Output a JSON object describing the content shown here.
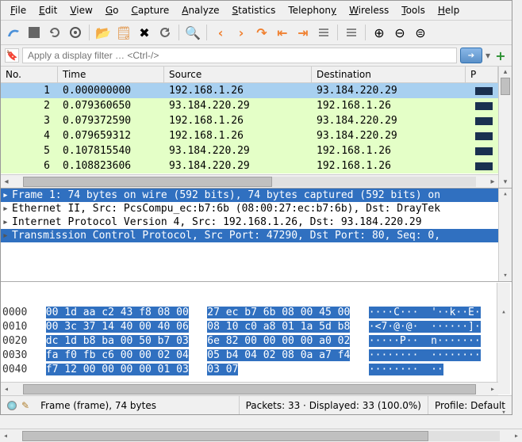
{
  "menu": {
    "file": "File",
    "edit": "Edit",
    "view": "View",
    "go": "Go",
    "capture": "Capture",
    "analyze": "Analyze",
    "statistics": "Statistics",
    "telephony": "Telephony",
    "wireless": "Wireless",
    "tools": "Tools",
    "help": "Help"
  },
  "filter": {
    "placeholder": "Apply a display filter … <Ctrl-/>"
  },
  "packet_list": {
    "columns": {
      "no": "No.",
      "time": "Time",
      "src": "Source",
      "dst": "Destination",
      "proto": "P"
    },
    "rows": [
      {
        "no": "1",
        "time": "0.000000000",
        "src": "192.168.1.26",
        "dst": "93.184.220.29",
        "sel": true
      },
      {
        "no": "2",
        "time": "0.079360650",
        "src": "93.184.220.29",
        "dst": "192.168.1.26"
      },
      {
        "no": "3",
        "time": "0.079372590",
        "src": "192.168.1.26",
        "dst": "93.184.220.29"
      },
      {
        "no": "4",
        "time": "0.079659312",
        "src": "192.168.1.26",
        "dst": "93.184.220.29"
      },
      {
        "no": "5",
        "time": "0.107815540",
        "src": "93.184.220.29",
        "dst": "192.168.1.26"
      },
      {
        "no": "6",
        "time": "0.108823606",
        "src": "93.184.220.29",
        "dst": "192.168.1.26"
      }
    ]
  },
  "details": {
    "l0": "Frame 1: 74 bytes on wire (592 bits), 74 bytes captured (592 bits) on",
    "l1": "Ethernet II, Src: PcsCompu_ec:b7:6b (08:00:27:ec:b7:6b), Dst: DrayTek",
    "l2": "Internet Protocol Version 4, Src: 192.168.1.26, Dst: 93.184.220.29",
    "l3": "Transmission Control Protocol, Src Port: 47290, Dst Port: 80, Seq: 0,"
  },
  "hex": {
    "lines": [
      {
        "off": "0000",
        "h1": "00 1d aa c2 43 f8 08 00",
        "h2": "27 ec b7 6b 08 00 45 00",
        "asc": "····C···  '··k··E·"
      },
      {
        "off": "0010",
        "h1": "00 3c 37 14 40 00 40 06",
        "h2": "08 10 c0 a8 01 1a 5d b8",
        "asc": "·<7·@·@·  ······]·"
      },
      {
        "off": "0020",
        "h1": "dc 1d b8 ba 00 50 b7 03",
        "h2": "6e 82 00 00 00 00 a0 02",
        "asc": "·····P··  n·······"
      },
      {
        "off": "0030",
        "h1": "fa f0 fb c6 00 00 02 04",
        "h2": "05 b4 04 02 08 0a a7 f4",
        "asc": "········  ········"
      },
      {
        "off": "0040",
        "h1": "f7 12 00 00 00 00 01 03",
        "h2": "03 07",
        "asc": "········  ··",
        "short": true
      }
    ]
  },
  "status": {
    "frame": "Frame (frame), 74 bytes",
    "packets": "Packets: 33 · Displayed: 33 (100.0%)",
    "profile": "Profile: Default"
  },
  "colors": {
    "sel_row": "#a8d0f0",
    "grn_row": "#e4ffc7",
    "det_sel": "#3070c0"
  }
}
